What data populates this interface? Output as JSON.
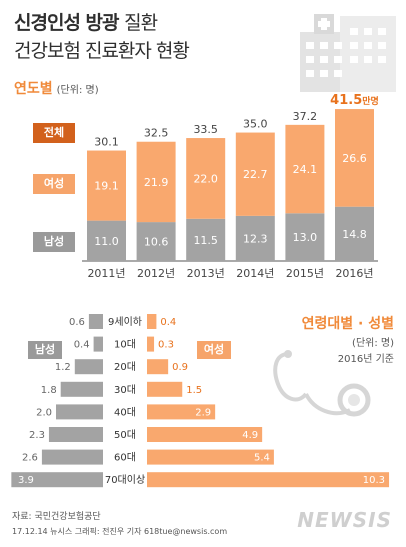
{
  "header": {
    "title_bold": "신경인성 방광",
    "title_rest": "질환",
    "subtitle": "건강보험 진료환자 현황"
  },
  "yearly": {
    "section_title": "연도별",
    "unit": "(단위: 명)",
    "label_total": "전체",
    "label_female": "여성",
    "label_male": "남성"
  },
  "age": {
    "section_title": "연령대별 · 성별",
    "unit": "(단위: 명)",
    "base_year": "2016년 기준",
    "label_male": "남성",
    "label_female": "여성"
  },
  "footer": {
    "source": "자료: 국민건강보험공단",
    "credit": "17.12.14 뉴시스 그래픽: 전진우 기자 618tue@newsis.com",
    "logo": "NEWSIS"
  },
  "colors": {
    "male": "#a3a3a3",
    "female": "#f9a86e",
    "total_label": "#d2611c",
    "highlight": "#e8721d"
  },
  "chart_data": [
    {
      "type": "bar",
      "stacked": true,
      "categories": [
        "2011년",
        "2012년",
        "2013년",
        "2014년",
        "2015년",
        "2016년"
      ],
      "series": [
        {
          "name": "남성",
          "values": [
            11.0,
            10.6,
            11.5,
            12.3,
            13.0,
            14.8
          ],
          "labels": [
            "11.0",
            "10.6",
            "11.5",
            "12.3",
            "13.0",
            "14.8"
          ]
        },
        {
          "name": "여성",
          "values": [
            19.1,
            21.9,
            22.0,
            22.7,
            24.1,
            26.6
          ],
          "labels": [
            "19.1",
            "21.9",
            "22.0",
            "22.7",
            "24.1",
            "26.6"
          ]
        }
      ],
      "totals": [
        30.1,
        32.5,
        33.5,
        35.0,
        37.2,
        41.5
      ],
      "total_labels": [
        "30.1",
        "32.5",
        "33.5",
        "35.0",
        "37.2",
        "41.5"
      ],
      "last_total_suffix": "만명",
      "ylim": [
        0,
        45
      ]
    },
    {
      "type": "bar",
      "orientation": "horizontal-butterfly",
      "categories": [
        "9세이하",
        "10대",
        "20대",
        "30대",
        "40대",
        "50대",
        "60대",
        "70대이상"
      ],
      "series": [
        {
          "name": "남성",
          "values": [
            0.6,
            0.4,
            1.2,
            1.8,
            2.0,
            2.3,
            2.6,
            3.9
          ],
          "labels": [
            "0.6",
            "0.4",
            "1.2",
            "1.8",
            "2.0",
            "2.3",
            "2.6",
            "3.9"
          ]
        },
        {
          "name": "여성",
          "values": [
            0.4,
            0.3,
            0.9,
            1.5,
            2.9,
            4.9,
            5.4,
            10.3
          ],
          "labels": [
            "0.4",
            "0.3",
            "0.9",
            "1.5",
            "2.9",
            "4.9",
            "5.4",
            "10.3"
          ]
        }
      ]
    }
  ]
}
